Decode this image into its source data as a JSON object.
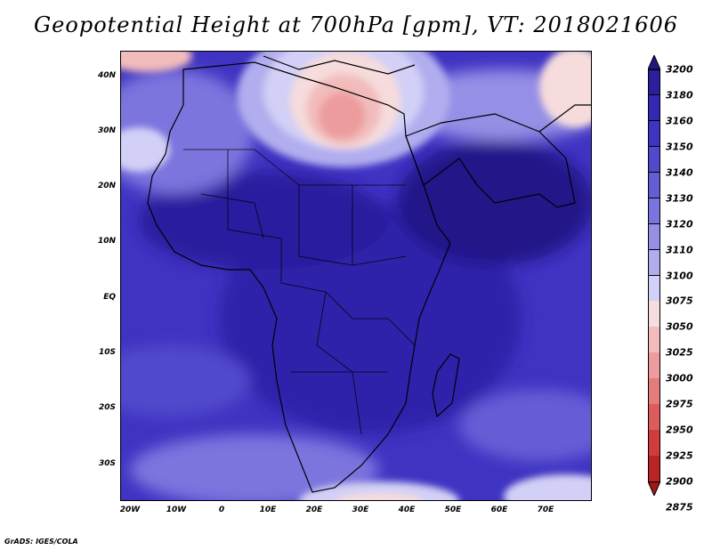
{
  "title": "Geopotential Height at 700hPa [gpm], VT: 2018021606",
  "footer": "GrADS: IGES/COLA",
  "axes": {
    "lat_labels": [
      "40N",
      "30N",
      "20N",
      "10N",
      "EQ",
      "10S",
      "20S",
      "30S"
    ],
    "lon_labels": [
      "20W",
      "10W",
      "0",
      "10E",
      "20E",
      "30E",
      "40E",
      "50E",
      "60E",
      "70E"
    ]
  },
  "colorbar": {
    "levels": [
      "3200",
      "3180",
      "3160",
      "3150",
      "3140",
      "3130",
      "3120",
      "3110",
      "3100",
      "3075",
      "3050",
      "3025",
      "3000",
      "2975",
      "2950",
      "2925",
      "2900",
      "2875"
    ],
    "colors": [
      "#231684",
      "#2b1f9e",
      "#3427b4",
      "#3f33c2",
      "#5148cc",
      "#655dd6",
      "#7b74de",
      "#958fe6",
      "#b1adee",
      "#d2d0f6",
      "#f6dcdc",
      "#f2bcbc",
      "#ec9c9c",
      "#e47c7c",
      "#dc5b5b",
      "#d03c3c",
      "#bb2424",
      "#a01717"
    ]
  },
  "colors": {
    "background": "#ffffff",
    "deep_blue": "#2b1f9e",
    "mid_blue": "#5148cc",
    "light_blue": "#b1adee",
    "pink": "#f2bcbc",
    "red": "#e47c7c"
  }
}
